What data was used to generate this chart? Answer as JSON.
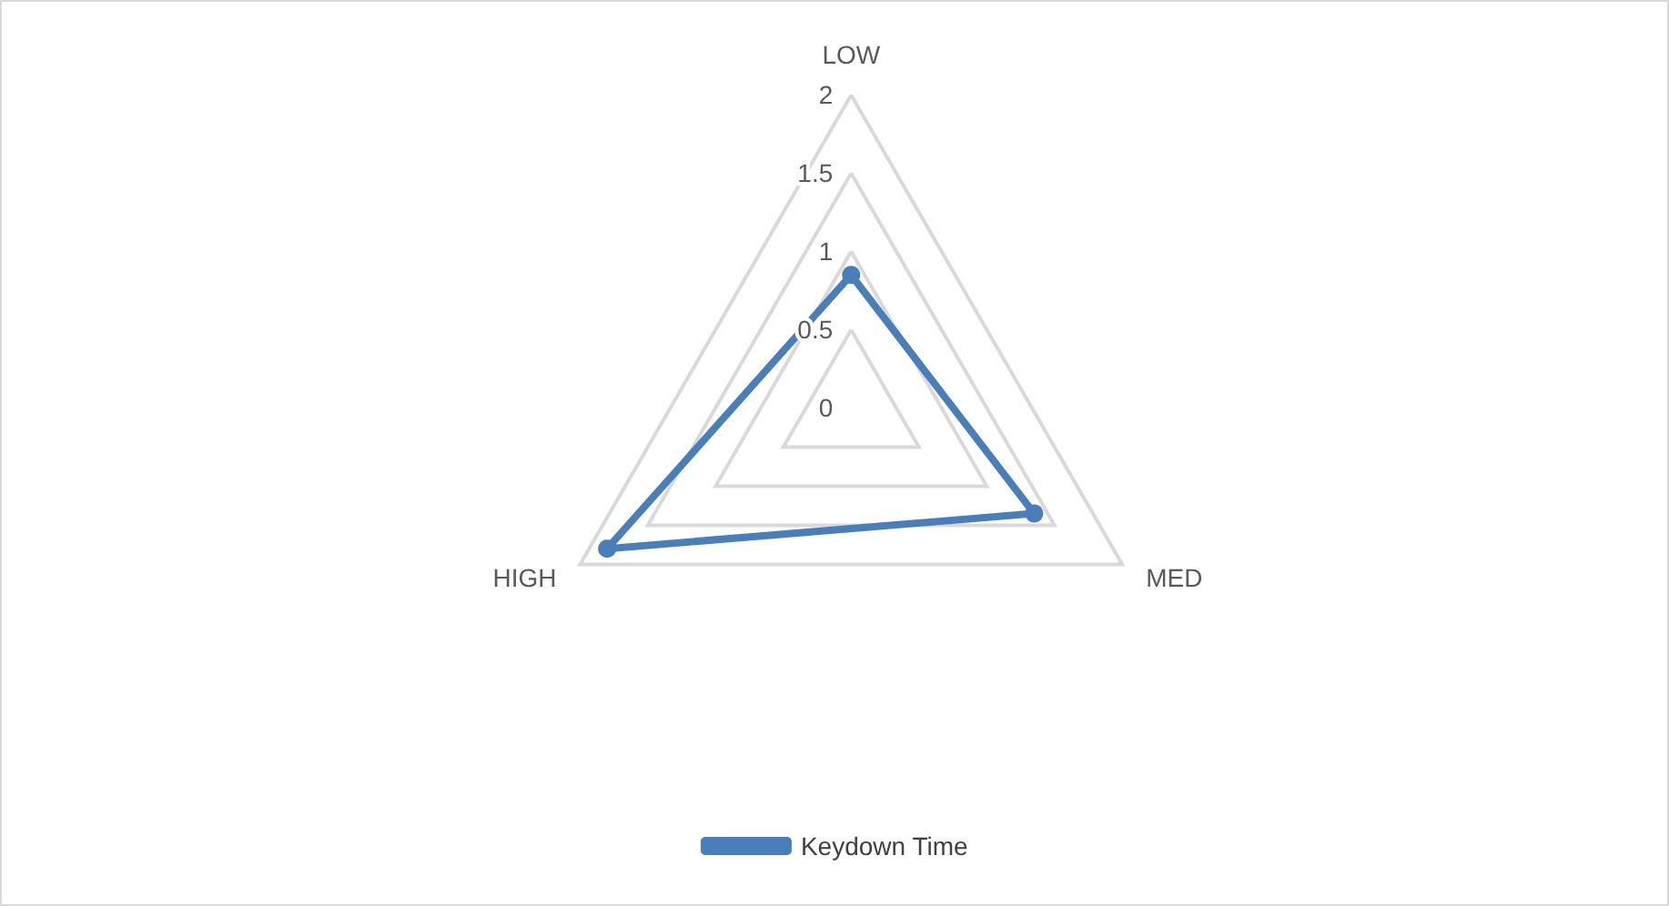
{
  "chart_data": {
    "type": "radar",
    "categories": [
      "LOW",
      "MED",
      "HIGH"
    ],
    "series": [
      {
        "name": "Keydown Time",
        "color": "#4a7ebb",
        "values": [
          0.85,
          1.35,
          1.8
        ]
      }
    ],
    "ylim": [
      0,
      2
    ],
    "yticks": [
      0,
      0.5,
      1,
      1.5,
      2
    ],
    "grid": true,
    "legend": "bottom",
    "marker": "circle"
  }
}
